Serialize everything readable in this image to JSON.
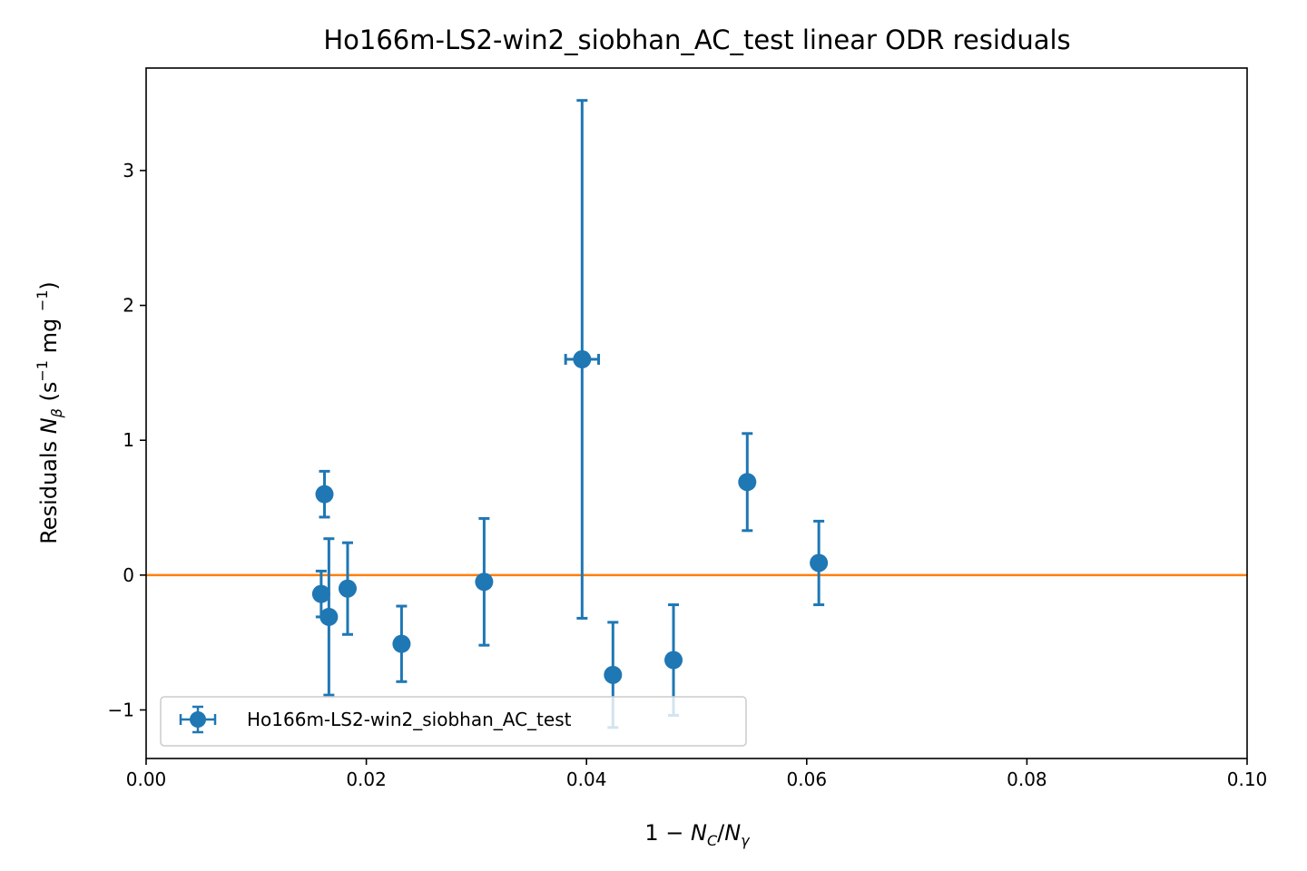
{
  "chart_data": {
    "type": "scatter",
    "title": "Ho166m-LS2-win2_siobhan_AC_test linear ODR residuals",
    "xlabel": "1 − N_C/N_γ",
    "ylabel": "Residuals N_β (s⁻¹ mg ⁻¹)",
    "xlim": [
      0.0,
      0.1
    ],
    "ylim": [
      -1.36,
      3.76
    ],
    "x_ticks": [
      "0.00",
      "0.02",
      "0.04",
      "0.06",
      "0.08",
      "0.10"
    ],
    "y_ticks": [
      "−1",
      "0",
      "1",
      "2",
      "3"
    ],
    "grid": false,
    "legend_position": "lower-left",
    "reference_line": {
      "y": 0,
      "color": "#ff7f0e"
    },
    "series": [
      {
        "name": "Ho166m-LS2-win2_siobhan_AC_test",
        "color": "#1f77b4",
        "points": [
          {
            "x": 0.0159,
            "y": -0.14,
            "yerr": 0.17,
            "xerr": 0.0
          },
          {
            "x": 0.0162,
            "y": 0.6,
            "yerr": 0.17,
            "xerr": 0.0
          },
          {
            "x": 0.0166,
            "y": -0.31,
            "yerr": 0.58,
            "xerr": 0.0
          },
          {
            "x": 0.0183,
            "y": -0.1,
            "yerr": 0.34,
            "xerr": 0.0
          },
          {
            "x": 0.0232,
            "y": -0.51,
            "yerr": 0.28,
            "xerr": 0.0
          },
          {
            "x": 0.0307,
            "y": -0.05,
            "yerr": 0.47,
            "xerr": 0.0
          },
          {
            "x": 0.0396,
            "y": 1.6,
            "yerr": 1.92,
            "xerr": 0.0015
          },
          {
            "x": 0.0424,
            "y": -0.74,
            "yerr": 0.39,
            "xerr": 0.0
          },
          {
            "x": 0.0479,
            "y": -0.63,
            "yerr": 0.41,
            "xerr": 0.0
          },
          {
            "x": 0.0546,
            "y": 0.69,
            "yerr": 0.36,
            "xerr": 0.0
          },
          {
            "x": 0.0611,
            "y": 0.09,
            "yerr": 0.31,
            "xerr": 0.0
          }
        ]
      }
    ]
  }
}
